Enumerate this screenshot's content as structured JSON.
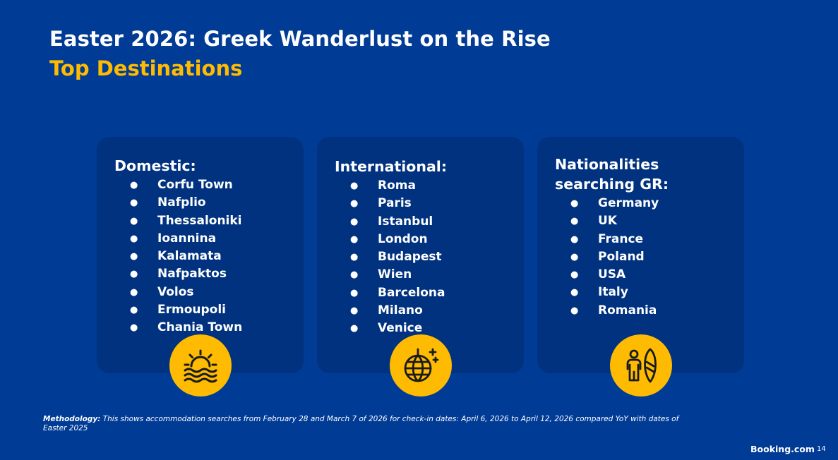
{
  "slide": {
    "title": "Easter 2026: Greek Wanderlust on the Rise",
    "subtitle": "Top Destinations"
  },
  "cards": [
    {
      "heading_lines": [
        "Domestic:"
      ],
      "icon": "sun-over-waves-icon",
      "items": [
        "Corfu Town",
        "Nafplio",
        "Thessaloniki",
        "Ioannina",
        "Kalamata",
        "Nafpaktos",
        "Volos",
        "Ermoupoli",
        "Chania Town"
      ]
    },
    {
      "heading_lines": [
        "International:"
      ],
      "icon": "disco-ball-icon",
      "items": [
        "Roma",
        "Paris",
        "Istanbul",
        "London",
        "Budapest",
        "Wien",
        "Barcelona",
        "Milano",
        "Venice"
      ]
    },
    {
      "heading_lines": [
        "Nationalities",
        "searching GR:"
      ],
      "icon": "person-with-surfboard-icon",
      "items": [
        "Germany",
        "UK",
        "France",
        "Poland",
        "USA",
        "Italy",
        "Romania"
      ]
    }
  ],
  "bullet_char": "●",
  "footer": {
    "methodology_label": "Methodology:",
    "methodology_text": " This shows accommodation searches from  February 28 and March 7 of 2026 for check-in dates: April 6, 2026 to April 12, 2026 compared YoY with dates of Easter 2025",
    "brand": "Booking.com",
    "page_number": "14"
  },
  "colors": {
    "background": "#003b95",
    "card": "#00327f",
    "accent": "#febb02",
    "text": "#ffffff"
  }
}
